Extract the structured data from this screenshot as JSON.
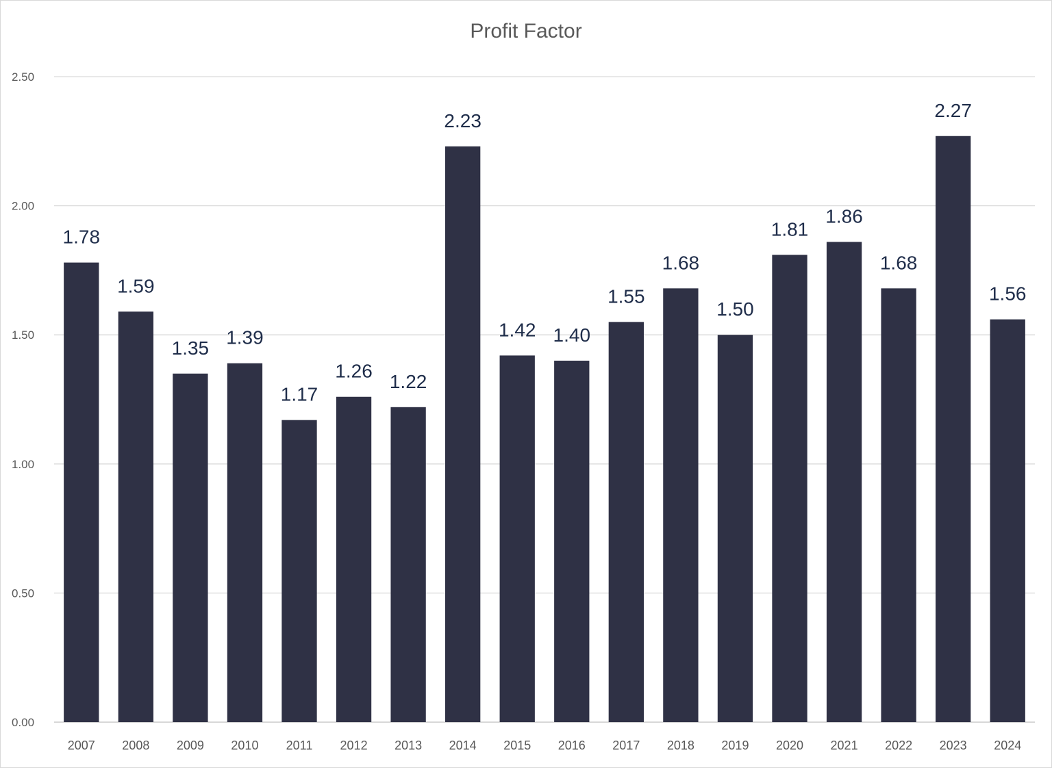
{
  "chart_data": {
    "type": "bar",
    "title": "Profit Factor",
    "xlabel": "",
    "ylabel": "",
    "ylim": [
      0,
      2.5
    ],
    "yticks": [
      "0.00",
      "0.50",
      "1.00",
      "1.50",
      "2.00",
      "2.50"
    ],
    "grid": true,
    "bar_color": "#2f3145",
    "categories": [
      "2007",
      "2008",
      "2009",
      "2010",
      "2011",
      "2012",
      "2013",
      "2014",
      "2015",
      "2016",
      "2017",
      "2018",
      "2019",
      "2020",
      "2021",
      "2022",
      "2023",
      "2024"
    ],
    "values": [
      1.78,
      1.59,
      1.35,
      1.39,
      1.17,
      1.26,
      1.22,
      2.23,
      1.42,
      1.4,
      1.55,
      1.68,
      1.5,
      1.81,
      1.86,
      1.68,
      2.27,
      1.56
    ],
    "data_labels": [
      "1.78",
      "1.59",
      "1.35",
      "1.39",
      "1.17",
      "1.26",
      "1.22",
      "2.23",
      "1.42",
      "1.40",
      "1.55",
      "1.68",
      "1.50",
      "1.81",
      "1.86",
      "1.68",
      "2.27",
      "1.56"
    ]
  }
}
